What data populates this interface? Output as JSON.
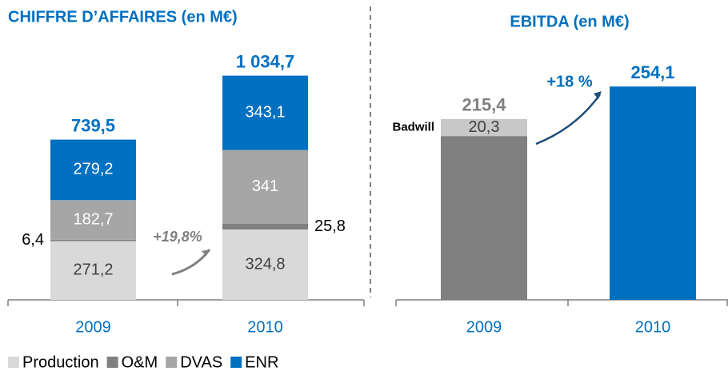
{
  "chart_data": [
    {
      "type": "stacked_bar",
      "title": "CHIFFRE D’AFFAIRES (en M€)",
      "categories": [
        "2009",
        "2010"
      ],
      "series": [
        {
          "name": "Production",
          "color": "#d9d9d9",
          "values": [
            271.2,
            324.8
          ],
          "value_labels": [
            "271,2",
            "324,8"
          ]
        },
        {
          "name": "O&M",
          "color": "#808080",
          "values": [
            6.4,
            25.8
          ],
          "value_labels": [
            "6,4",
            "25,8"
          ]
        },
        {
          "name": "DVAS",
          "color": "#a6a6a6",
          "values": [
            182.7,
            341
          ],
          "value_labels": [
            "182,7",
            "341"
          ]
        },
        {
          "name": "ENR",
          "color": "#0070c0",
          "values": [
            279.2,
            343.1
          ],
          "value_labels": [
            "279,2",
            "343,1"
          ]
        }
      ],
      "totals": [
        739.5,
        1034.7
      ],
      "total_labels": [
        "739,5",
        "1 034,7"
      ],
      "total_colors": [
        "#0070c0",
        "#0070c0"
      ],
      "annotation": "+19,8%",
      "legend": true
    },
    {
      "type": "stacked_bar",
      "title": "EBITDA (en M€)",
      "categories": [
        "2009",
        "2010"
      ],
      "series": [
        {
          "colors": [
            "#808080",
            "#0070c0"
          ],
          "values": [
            195.1,
            254.1
          ]
        },
        {
          "name": "Badwill",
          "color": "#c8c8c8",
          "values": [
            20.3,
            null
          ],
          "value_labels": [
            "20,3",
            null
          ]
        }
      ],
      "totals": [
        215.4,
        254.1
      ],
      "total_labels": [
        "215,4",
        "254,1"
      ],
      "total_colors": [
        "#808080",
        "#0070c0"
      ],
      "annotation": "+18 %",
      "legend": false
    }
  ]
}
